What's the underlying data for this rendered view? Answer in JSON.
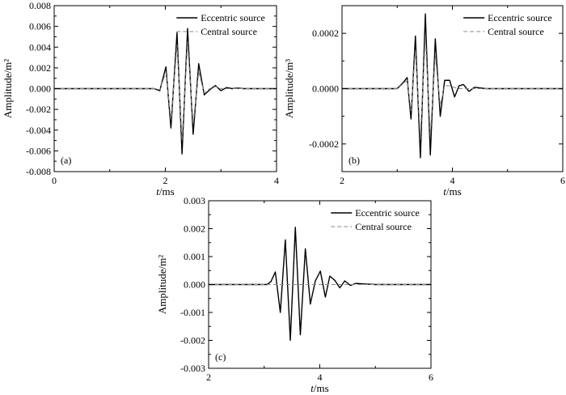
{
  "chart_data": [
    {
      "type": "line",
      "panel_label": "(a)",
      "xlabel_italic": "t",
      "xlabel_unit": "/ms",
      "ylabel": "Amplitude/m²",
      "xlim": [
        0,
        4
      ],
      "ylim": [
        -0.008,
        0.008
      ],
      "xticks": [
        0,
        2,
        4
      ],
      "xtick_labels": [
        "0",
        "2",
        "4"
      ],
      "yticks": [
        -0.008,
        -0.006,
        -0.004,
        -0.002,
        0,
        0.002,
        0.004,
        0.006,
        0.008
      ],
      "ytick_labels": [
        "-0.008",
        "-0.006",
        "-0.004",
        "-0.002",
        "0.000",
        "0.002",
        "0.004",
        "0.006",
        "0.008"
      ],
      "legend_position": "top-right",
      "series": [
        {
          "name": "Eccentric source",
          "style": "solid",
          "color": "#000000",
          "x": [
            0,
            1.8,
            1.9,
            2.01,
            2.1,
            2.21,
            2.3,
            2.4,
            2.5,
            2.6,
            2.7,
            2.8,
            2.9,
            3.0,
            3.1,
            3.2,
            3.3,
            3.4,
            3.6,
            4.0
          ],
          "y": [
            0,
            0,
            -0.0002,
            0.0021,
            -0.0038,
            0.0054,
            -0.0063,
            0.0058,
            -0.0044,
            0.0024,
            -0.0006,
            -0.0001,
            0.0003,
            -0.0002,
            0.0001,
            0,
            5e-05,
            0,
            0,
            0
          ]
        },
        {
          "name": "Central source",
          "style": "dashed",
          "color": "#888888",
          "x": [
            0,
            1.8,
            1.9,
            2.01,
            2.1,
            2.21,
            2.3,
            2.4,
            2.5,
            2.6,
            2.7,
            2.8,
            2.9,
            3.0,
            3.6,
            4.0
          ],
          "y": [
            0,
            0,
            -0.0001,
            0.0016,
            -0.003,
            0.0042,
            -0.005,
            0.0045,
            -0.0034,
            0.0016,
            -0.0004,
            0,
            0.0002,
            0,
            0,
            0
          ]
        }
      ]
    },
    {
      "type": "line",
      "panel_label": "(b)",
      "xlabel_italic": "t",
      "xlabel_unit": "/ms",
      "ylabel": "Amplitude/m³",
      "xlim": [
        2,
        6
      ],
      "ylim": [
        -0.0003,
        0.0003
      ],
      "xticks": [
        2,
        4,
        6
      ],
      "xtick_labels": [
        "2",
        "4",
        "6"
      ],
      "yticks": [
        -0.0002,
        0,
        0.0002
      ],
      "ytick_labels": [
        "-0.0002",
        "0.0000",
        "0.0002"
      ],
      "yminor": [
        -0.0003,
        -0.0001,
        0.0001,
        0.0003
      ],
      "legend_position": "top-right",
      "series": [
        {
          "name": "Eccentric source",
          "style": "solid",
          "color": "#000000",
          "x": [
            2,
            3.0,
            3.1,
            3.18,
            3.25,
            3.33,
            3.42,
            3.51,
            3.6,
            3.69,
            3.78,
            3.86,
            3.95,
            4.04,
            4.12,
            4.2,
            4.3,
            4.4,
            4.6,
            4.8,
            6
          ],
          "y": [
            0,
            0,
            2e-05,
            4e-05,
            -0.00011,
            0.00019,
            -0.00025,
            0.00027,
            -0.00024,
            0.00018,
            -0.0001,
            3e-05,
            3e-05,
            -3e-05,
            1e-05,
            1.5e-05,
            -1e-05,
            5e-06,
            0,
            0,
            0
          ]
        },
        {
          "name": "Central source",
          "style": "dashed",
          "color": "#888888",
          "x": [
            2,
            3.0,
            3.18,
            3.25,
            3.33,
            3.42,
            3.51,
            3.6,
            3.69,
            3.78,
            3.86,
            3.95,
            4.1,
            4.6,
            6
          ],
          "y": [
            0,
            0,
            3e-05,
            -8e-05,
            0.00014,
            -0.00018,
            0.00019,
            -0.00017,
            0.00012,
            -6e-05,
            1e-05,
            1e-05,
            0,
            0,
            0
          ]
        }
      ]
    },
    {
      "type": "line",
      "panel_label": "(c)",
      "xlabel_italic": "t",
      "xlabel_unit": "/ms",
      "ylabel": "Amplitude/m²",
      "xlim": [
        2,
        6
      ],
      "ylim": [
        -0.003,
        0.003
      ],
      "xticks": [
        2,
        4,
        6
      ],
      "xtick_labels": [
        "2",
        "4",
        "6"
      ],
      "yticks": [
        -0.003,
        -0.002,
        -0.001,
        0,
        0.001,
        0.002,
        0.003
      ],
      "ytick_labels": [
        "-0.003",
        "-0.002",
        "-0.001",
        "0.000",
        "0.001",
        "0.002",
        "0.003"
      ],
      "legend_position": "top-right",
      "series": [
        {
          "name": "Eccentric source",
          "style": "solid",
          "color": "#000000",
          "x": [
            2,
            3.05,
            3.12,
            3.2,
            3.29,
            3.38,
            3.47,
            3.56,
            3.65,
            3.74,
            3.83,
            3.92,
            4.01,
            4.1,
            4.18,
            4.27,
            4.36,
            4.45,
            4.55,
            4.65,
            4.8,
            5.0,
            6
          ],
          "y": [
            0,
            0,
            0.0001,
            0.00045,
            -0.001,
            0.0016,
            -0.002,
            0.00205,
            -0.0018,
            0.00128,
            -0.0007,
            0.00013,
            0.00048,
            -0.00045,
            0.0003,
            0.00015,
            -0.00012,
            0.00013,
            -3e-05,
            4e-05,
            2e-05,
            0,
            0
          ]
        },
        {
          "name": "Central source",
          "style": "dashed",
          "color": "#888888",
          "x": [
            2,
            6
          ],
          "y": [
            0,
            0
          ]
        }
      ]
    }
  ]
}
